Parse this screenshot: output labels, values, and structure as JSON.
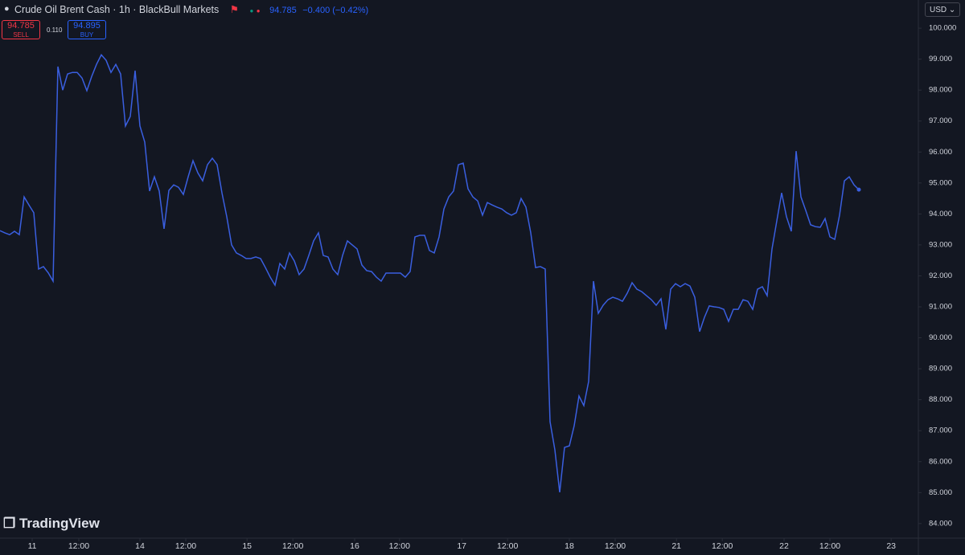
{
  "toolbar": {
    "title": "Crude Oil Brent Cash · 1h · BlackBull Markets",
    "last": "94.785",
    "change": "−0.400 (−0.42%)",
    "sell_price": "94.785",
    "sell_label": "SELL",
    "spread": "0.110",
    "buy_price": "94.895",
    "buy_label": "BUY",
    "currency": "USD",
    "logo": "TradingView"
  },
  "chart_data": {
    "type": "line",
    "color": "#3a5fe0",
    "values": [
      93.46,
      93.39,
      93.33,
      93.44,
      93.33,
      94.55,
      94.29,
      94.04,
      92.22,
      92.3,
      92.1,
      91.83,
      98.76,
      98.0,
      98.52,
      98.57,
      98.57,
      98.39,
      97.98,
      98.44,
      98.83,
      99.14,
      98.96,
      98.57,
      98.83,
      98.52,
      96.84,
      97.15,
      98.63,
      96.84,
      96.32,
      94.74,
      95.2,
      94.74,
      93.52,
      94.76,
      94.94,
      94.86,
      94.63,
      95.2,
      95.72,
      95.33,
      95.07,
      95.59,
      95.8,
      95.59,
      94.68,
      93.91,
      93.0,
      92.74,
      92.66,
      92.56,
      92.56,
      92.61,
      92.56,
      92.27,
      91.96,
      91.7,
      92.4,
      92.22,
      92.74,
      92.48,
      92.04,
      92.22,
      92.66,
      93.13,
      93.39,
      92.66,
      92.61,
      92.22,
      92.04,
      92.66,
      93.13,
      93.0,
      92.87,
      92.35,
      92.17,
      92.14,
      91.96,
      91.83,
      92.09,
      92.09,
      92.09,
      92.09,
      91.96,
      92.14,
      93.26,
      93.31,
      93.31,
      92.82,
      92.74,
      93.26,
      94.16,
      94.55,
      94.74,
      95.59,
      95.64,
      94.81,
      94.55,
      94.42,
      93.96,
      94.37,
      94.29,
      94.22,
      94.16,
      94.04,
      93.96,
      94.04,
      94.5,
      94.22,
      93.39,
      92.27,
      92.3,
      92.22,
      87.29,
      86.38,
      85.01,
      86.46,
      86.51,
      87.16,
      88.12,
      87.81,
      88.59,
      91.83,
      90.79,
      91.05,
      91.23,
      91.31,
      91.26,
      91.18,
      91.44,
      91.78,
      91.57,
      91.49,
      91.36,
      91.23,
      91.05,
      91.26,
      90.27,
      91.57,
      91.75,
      91.65,
      91.75,
      91.67,
      91.31,
      90.2,
      90.66,
      91.03,
      91.0,
      90.98,
      90.92,
      90.53,
      90.92,
      90.92,
      91.23,
      91.18,
      90.92,
      91.57,
      91.65,
      91.36,
      92.87,
      93.78,
      94.68,
      93.91,
      93.44,
      96.03,
      94.55,
      94.11,
      93.65,
      93.59,
      93.57,
      93.85,
      93.26,
      93.18,
      93.96,
      95.07,
      95.2,
      94.94,
      94.785
    ],
    "xlim": [
      0,
      190
    ],
    "xticks": [
      {
        "value": 6.67,
        "label": "11"
      },
      {
        "value": 16.33,
        "label": "12:00"
      },
      {
        "value": 29,
        "label": "14"
      },
      {
        "value": 38.5,
        "label": "12:00"
      },
      {
        "value": 51.2,
        "label": "15"
      },
      {
        "value": 60.7,
        "label": "12:00"
      },
      {
        "value": 73.5,
        "label": "16"
      },
      {
        "value": 82.8,
        "label": "12:00"
      },
      {
        "value": 95.7,
        "label": "17"
      },
      {
        "value": 105.2,
        "label": "12:00"
      },
      {
        "value": 118,
        "label": "18"
      },
      {
        "value": 127.5,
        "label": "12:00"
      },
      {
        "value": 140.2,
        "label": "21"
      },
      {
        "value": 149.7,
        "label": "12:00"
      },
      {
        "value": 162.5,
        "label": "22"
      },
      {
        "value": 172,
        "label": "12:00"
      },
      {
        "value": 184.7,
        "label": "23"
      }
    ],
    "ylim": [
      83.53,
      100.91
    ],
    "yticks": [
      {
        "value": 84,
        "label": "84.000"
      },
      {
        "value": 85,
        "label": "85.000"
      },
      {
        "value": 86,
        "label": "86.000"
      },
      {
        "value": 87,
        "label": "87.000"
      },
      {
        "value": 88,
        "label": "88.000"
      },
      {
        "value": 89,
        "label": "89.000"
      },
      {
        "value": 90,
        "label": "90.000"
      },
      {
        "value": 91,
        "label": "91.000"
      },
      {
        "value": 92,
        "label": "92.000"
      },
      {
        "value": 93,
        "label": "93.000"
      },
      {
        "value": 94,
        "label": "94.000"
      },
      {
        "value": 95,
        "label": "95.000"
      },
      {
        "value": 96,
        "label": "96.000"
      },
      {
        "value": 97,
        "label": "97.000"
      },
      {
        "value": 98,
        "label": "98.000"
      },
      {
        "value": 99,
        "label": "99.000"
      },
      {
        "value": 100,
        "label": "100.000"
      }
    ],
    "grid": false
  }
}
